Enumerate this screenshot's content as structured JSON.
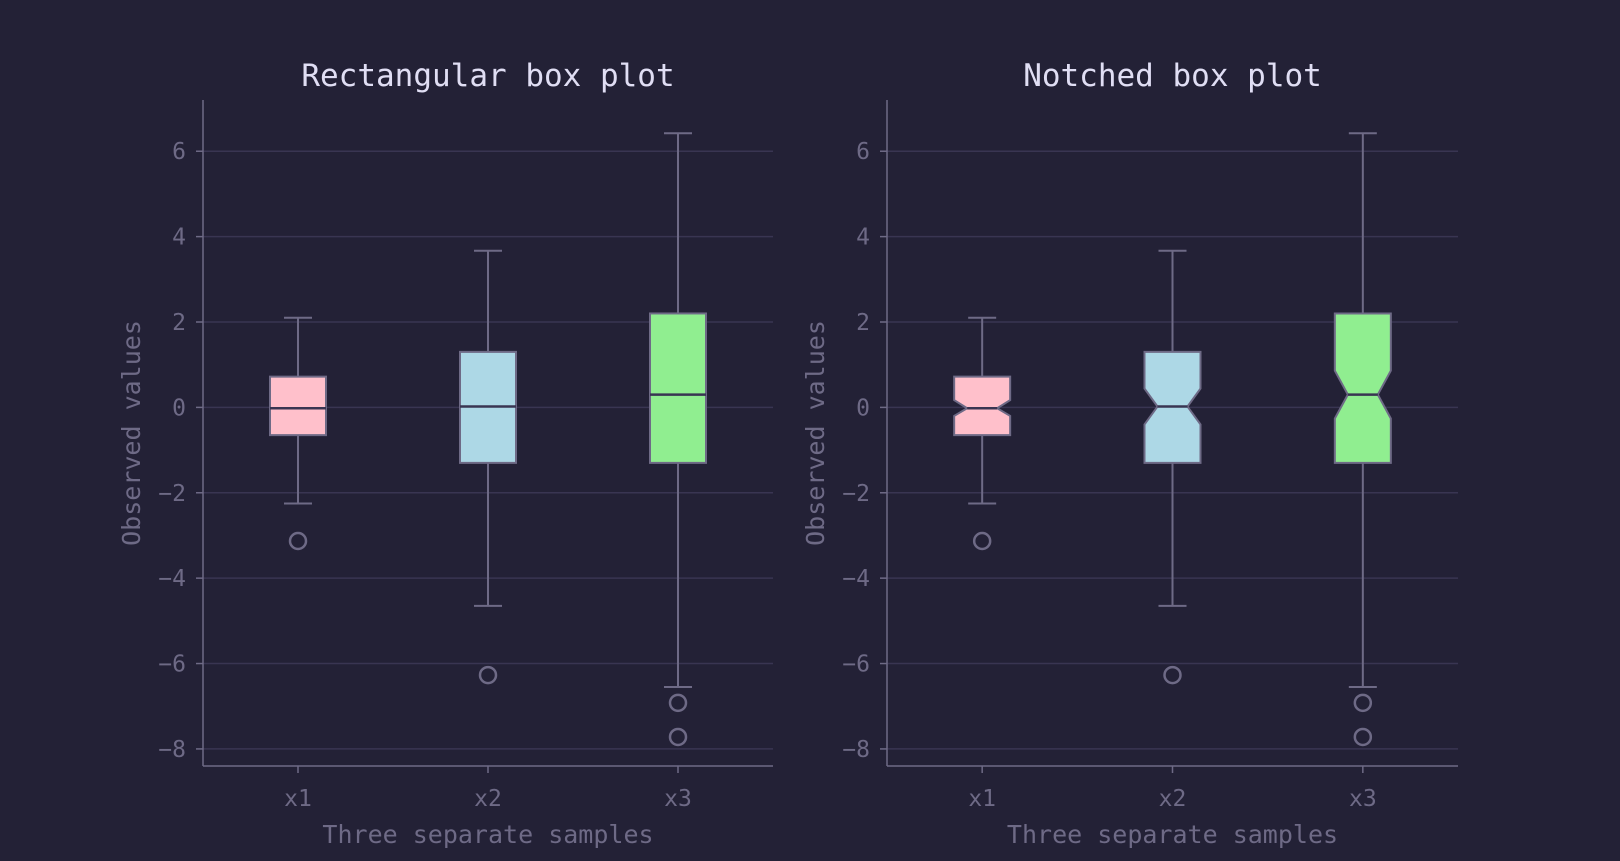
{
  "chart_data": [
    {
      "type": "box",
      "variant": "rectangular",
      "title": "Rectangular box plot",
      "xlabel": "Three separate samples",
      "ylabel": "Observed values",
      "ylim": [
        -8.4,
        7.2
      ],
      "yticks": [
        6,
        4,
        2,
        0,
        -2,
        -4,
        -6,
        -8
      ],
      "ytick_labels": [
        "6",
        "4",
        "2",
        "0",
        "−2",
        "−4",
        "−6",
        "−8"
      ],
      "grid": "horizontal",
      "categories": [
        "x1",
        "x2",
        "x3"
      ],
      "boxes": [
        {
          "label": "x1",
          "whisker_low": -2.25,
          "q1": -0.65,
          "median": -0.02,
          "q3": 0.72,
          "whisker_high": 2.1,
          "outliers": [
            -3.13
          ],
          "color": "#ffc0cb"
        },
        {
          "label": "x2",
          "whisker_low": -4.65,
          "q1": -1.3,
          "median": 0.02,
          "q3": 1.3,
          "whisker_high": 3.67,
          "outliers": [
            -6.27
          ],
          "color": "#add8e6"
        },
        {
          "label": "x3",
          "whisker_low": -6.55,
          "q1": -1.3,
          "median": 0.3,
          "q3": 2.2,
          "whisker_high": 6.42,
          "outliers": [
            -6.92,
            -7.72
          ],
          "color": "#90ee90"
        }
      ]
    },
    {
      "type": "box",
      "variant": "notched",
      "title": "Notched box plot",
      "xlabel": "Three separate samples",
      "ylabel": "Observed values",
      "ylim": [
        -8.4,
        7.2
      ],
      "yticks": [
        6,
        4,
        2,
        0,
        -2,
        -4,
        -6,
        -8
      ],
      "ytick_labels": [
        "6",
        "4",
        "2",
        "0",
        "−2",
        "−4",
        "−6",
        "−8"
      ],
      "grid": "horizontal",
      "categories": [
        "x1",
        "x2",
        "x3"
      ],
      "boxes": [
        {
          "label": "x1",
          "whisker_low": -2.25,
          "q1": -0.65,
          "notch_low": -0.2,
          "median": -0.02,
          "notch_high": 0.17,
          "q3": 0.72,
          "whisker_high": 2.1,
          "outliers": [
            -3.13
          ],
          "color": "#ffc0cb"
        },
        {
          "label": "x2",
          "whisker_low": -4.65,
          "q1": -1.3,
          "notch_low": -0.4,
          "median": 0.02,
          "notch_high": 0.44,
          "q3": 1.3,
          "whisker_high": 3.67,
          "outliers": [
            -6.27
          ],
          "color": "#add8e6"
        },
        {
          "label": "x3",
          "whisker_low": -6.55,
          "q1": -1.3,
          "notch_low": -0.26,
          "median": 0.3,
          "notch_high": 0.86,
          "q3": 2.2,
          "whisker_high": 6.42,
          "outliers": [
            -6.92,
            -7.72
          ],
          "color": "#90ee90"
        }
      ]
    }
  ],
  "colors": {
    "background": "#232136",
    "text": "#e0def4",
    "muted": "#6e6a86",
    "grid": "#393552",
    "box_edge": "#6e6a86",
    "median": "#393552"
  }
}
